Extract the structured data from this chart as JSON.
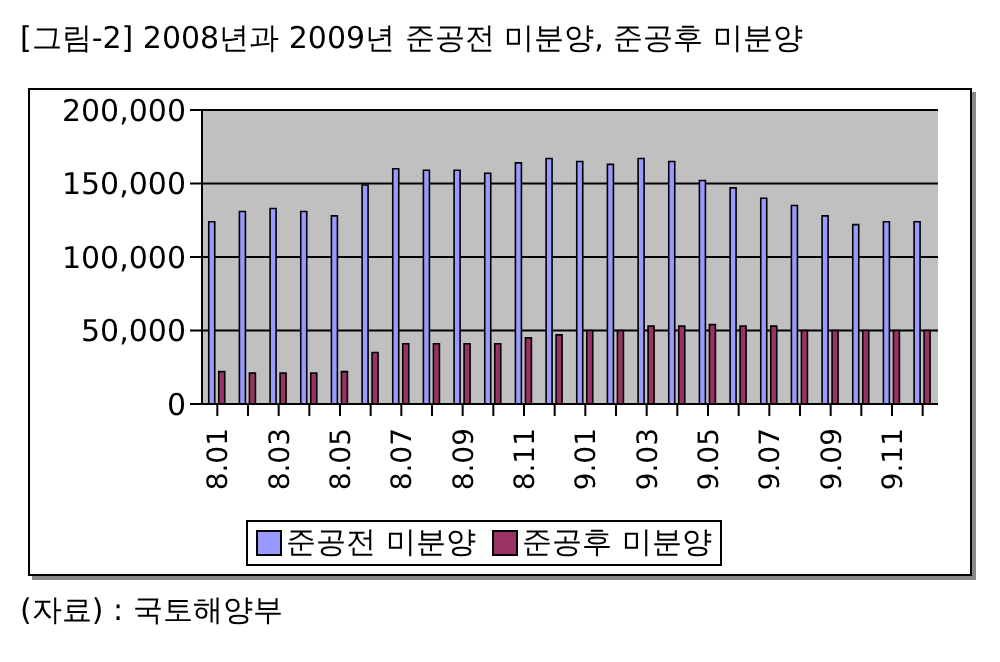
{
  "chart_data": {
    "type": "bar",
    "title": "[그림-2] 2008년과 2009년 준공전 미분양, 준공후 미분양",
    "categories": [
      "8.01",
      null,
      "8.03",
      null,
      "8.05",
      null,
      "8.07",
      null,
      "8.09",
      null,
      "8.11",
      null,
      "9.01",
      null,
      "9.03",
      null,
      "9.05",
      null,
      "9.07",
      null,
      "9.09",
      null,
      "9.11",
      null
    ],
    "series": [
      {
        "name": "준공전 미분양",
        "color": "#9999ff",
        "values": [
          124000,
          131000,
          133000,
          131000,
          128000,
          149000,
          160000,
          159000,
          159000,
          157000,
          164000,
          167000,
          165000,
          163000,
          167000,
          165000,
          152000,
          147000,
          140000,
          135000,
          128000,
          122000,
          124000,
          124000
        ]
      },
      {
        "name": "준공후 미분양",
        "color": "#993366",
        "values": [
          22000,
          21000,
          21000,
          21000,
          22000,
          35000,
          41000,
          41000,
          41000,
          41000,
          45000,
          47000,
          50000,
          50000,
          53000,
          53000,
          54000,
          53000,
          53000,
          50000,
          50000,
          50000,
          50000,
          50000
        ]
      }
    ],
    "ylim": [
      0,
      200000
    ],
    "yticks": [
      {
        "value": 0,
        "label": "0"
      },
      {
        "value": 50000,
        "label": "50,000"
      },
      {
        "value": 100000,
        "label": "100,000"
      },
      {
        "value": 150000,
        "label": "150,000"
      },
      {
        "value": 200000,
        "label": "200,000"
      }
    ],
    "grid": "y",
    "legend": "bottom",
    "annotations": [
      "(자료) : 국토해양부"
    ]
  }
}
